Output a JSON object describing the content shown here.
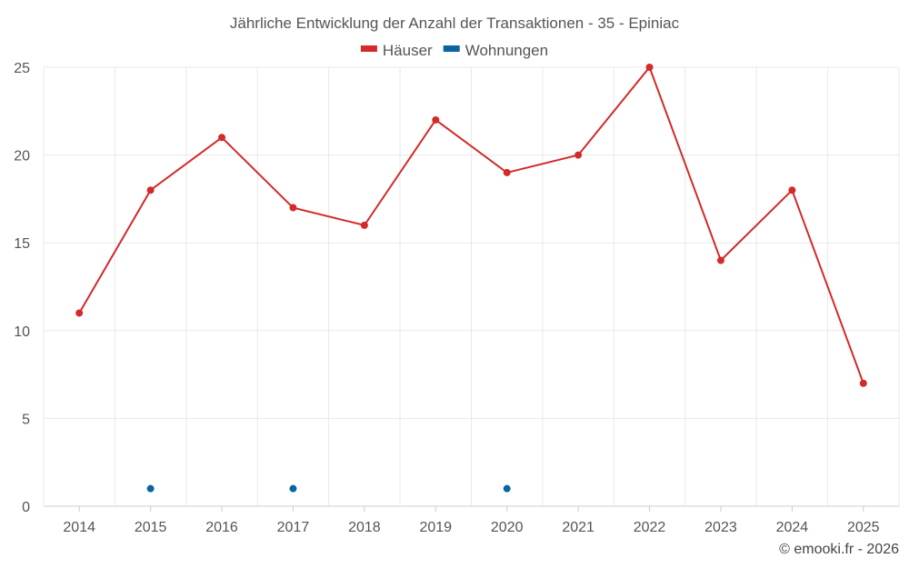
{
  "chart_data": {
    "type": "line",
    "title": "Jährliche Entwicklung der Anzahl der Transaktionen - 35 - Epiniac",
    "x": [
      "2014",
      "2015",
      "2016",
      "2017",
      "2018",
      "2019",
      "2020",
      "2021",
      "2022",
      "2023",
      "2024",
      "2025"
    ],
    "ylim": [
      0,
      25
    ],
    "yticks": [
      "0",
      "5",
      "10",
      "15",
      "20",
      "25"
    ],
    "grid": true,
    "legend_position": "top-center",
    "series": [
      {
        "name": "Häuser",
        "color": "#d32a2a",
        "values": [
          11,
          18,
          21,
          17,
          16,
          22,
          19,
          20,
          25,
          14,
          18,
          7
        ]
      },
      {
        "name": "Wohnungen",
        "color": "#0a64a0",
        "values": [
          null,
          1,
          null,
          1,
          null,
          null,
          1,
          null,
          null,
          null,
          null,
          null
        ]
      }
    ]
  },
  "credit": "© emooki.fr - 2026"
}
